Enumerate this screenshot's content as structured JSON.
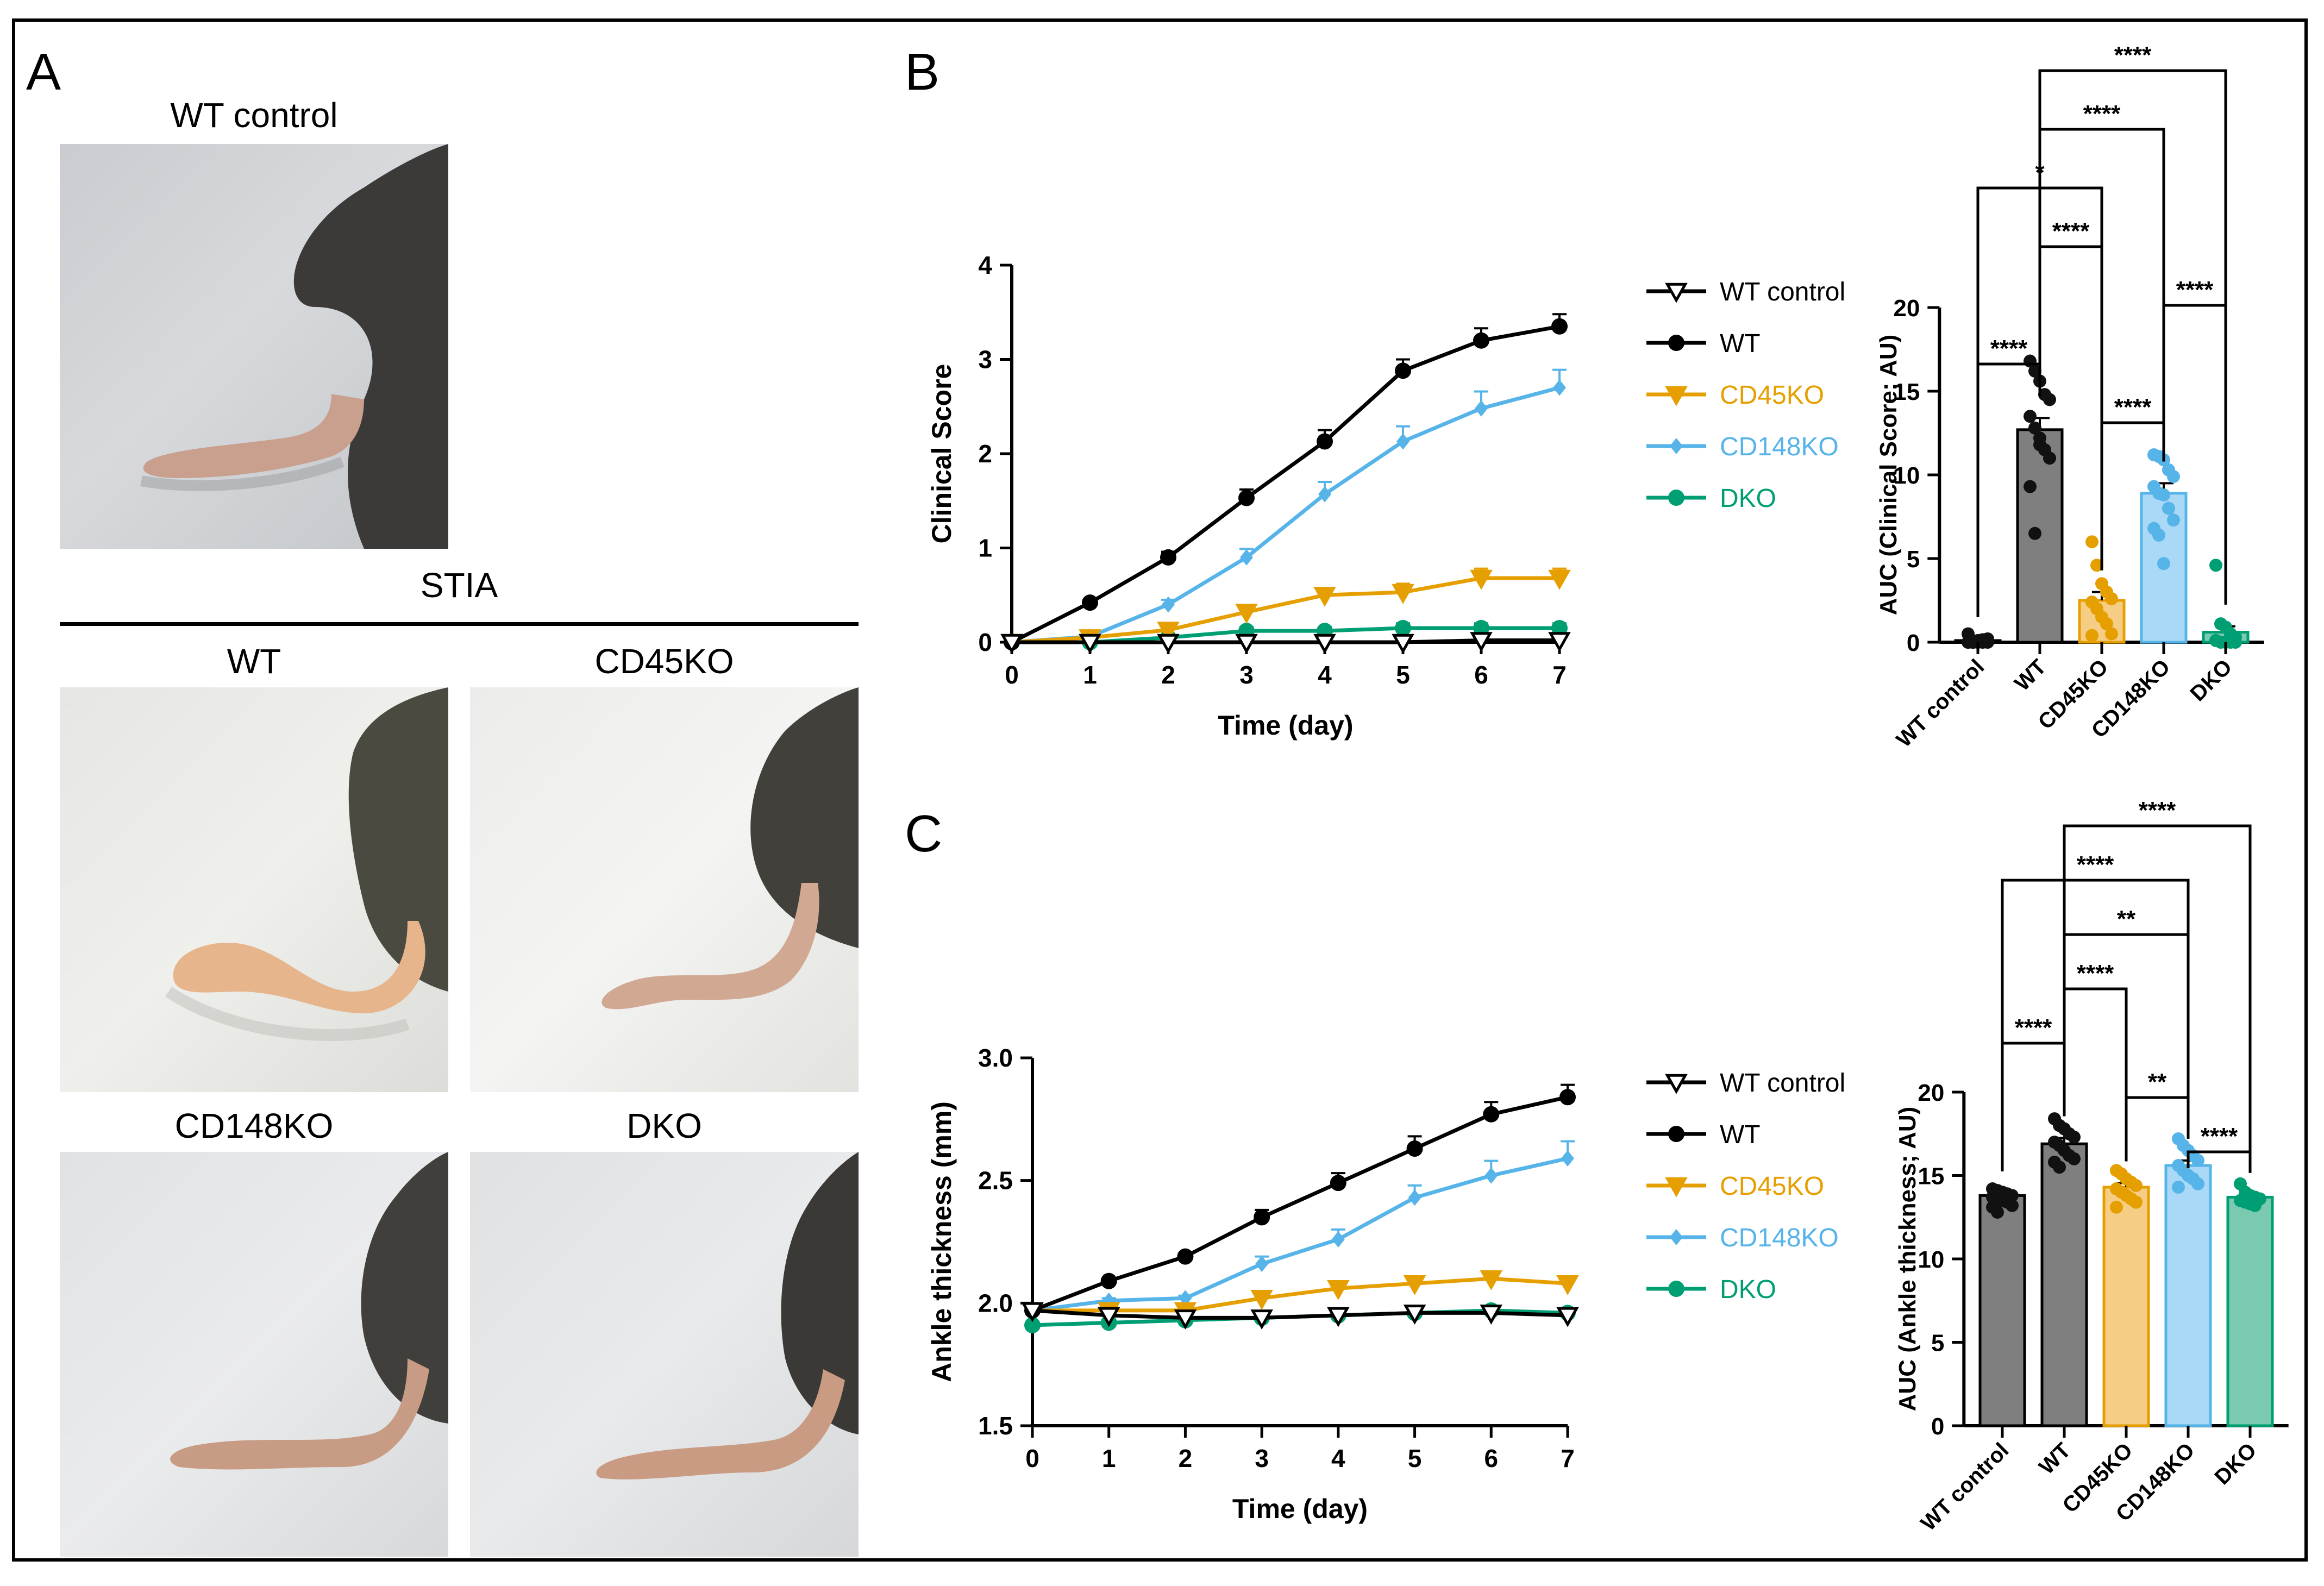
{
  "panels": {
    "a": "A",
    "b": "B",
    "c": "C"
  },
  "panel_a": {
    "control_title": "WT control",
    "group_title": "STIA",
    "photo_titles": [
      "WT",
      "CD45KO",
      "CD148KO",
      "DKO"
    ]
  },
  "colors": {
    "WT control": "#000000",
    "WT": "#000000",
    "CD45KO": "#E69F00",
    "CD148KO": "#56B4E9",
    "DKO": "#009E73",
    "bar_WT control": "#7f7f7f",
    "bar_WT": "#7f7f7f",
    "bar_CD45KO": "#f5cd85",
    "bar_CD148KO": "#a9d9f6",
    "bar_DKO": "#7cc9b2"
  },
  "chart_data": [
    {
      "id": "clinical-line",
      "type": "line",
      "title": "",
      "xlabel": "Time (day)",
      "ylabel": "Clinical Score",
      "x": [
        0,
        1,
        2,
        3,
        4,
        5,
        6,
        7
      ],
      "xticks": [
        "0",
        "1",
        "2",
        "3",
        "4",
        "5",
        "6",
        "7"
      ],
      "xlim": [
        0,
        7
      ],
      "ylim": [
        0,
        4
      ],
      "yticks": [
        "0",
        "1",
        "2",
        "3",
        "4"
      ],
      "series": [
        {
          "name": "WT control",
          "marker": "triangle-down-open",
          "values": [
            0,
            0,
            0,
            0,
            0,
            0,
            0.02,
            0.02
          ],
          "err": [
            0,
            0,
            0,
            0,
            0,
            0,
            0.03,
            0.03
          ]
        },
        {
          "name": "WT",
          "marker": "circle",
          "values": [
            0,
            0.42,
            0.9,
            1.53,
            2.13,
            2.88,
            3.2,
            3.35
          ],
          "err": [
            0,
            0.03,
            0.06,
            0.09,
            0.12,
            0.12,
            0.13,
            0.13
          ]
        },
        {
          "name": "CD45KO",
          "marker": "triangle-down",
          "values": [
            0,
            0.05,
            0.13,
            0.32,
            0.5,
            0.53,
            0.68,
            0.68
          ],
          "err": [
            0,
            0.02,
            0.04,
            0.06,
            0.07,
            0.09,
            0.1,
            0.1
          ]
        },
        {
          "name": "CD148KO",
          "marker": "diamond",
          "values": [
            0,
            0.06,
            0.4,
            0.9,
            1.57,
            2.13,
            2.48,
            2.7
          ],
          "err": [
            0,
            0.02,
            0.05,
            0.09,
            0.13,
            0.16,
            0.18,
            0.19
          ]
        },
        {
          "name": "DKO",
          "marker": "circle",
          "values": [
            0,
            0,
            0.05,
            0.12,
            0.12,
            0.15,
            0.15,
            0.15
          ],
          "err": [
            0,
            0,
            0.03,
            0.04,
            0.04,
            0.05,
            0.05,
            0.05
          ]
        }
      ],
      "legend": [
        "WT control",
        "WT",
        "CD45KO",
        "CD148KO",
        "DKO"
      ]
    },
    {
      "id": "clinical-bar",
      "type": "bar",
      "title": "",
      "xlabel": "",
      "ylabel": "AUC (Clinical Score; AU)",
      "categories": [
        "WT control",
        "WT",
        "CD45KO",
        "CD148KO",
        "DKO"
      ],
      "values": [
        0.1,
        12.7,
        2.5,
        8.9,
        0.6
      ],
      "err": [
        0.1,
        0.7,
        0.5,
        0.6,
        0.35
      ],
      "ylim": [
        0,
        20
      ],
      "yticks": [
        "0",
        "5",
        "10",
        "15",
        "20"
      ],
      "points": [
        [
          0,
          0,
          0,
          0,
          0,
          0,
          0,
          0.1,
          0.15,
          0.2,
          0.5,
          0,
          0
        ],
        [
          16.8,
          16.2,
          15.6,
          14.8,
          14.5,
          13.5,
          12.8,
          12.2,
          11.5,
          11,
          9.3,
          6.5,
          11.8
        ],
        [
          6,
          4.6,
          3.5,
          3,
          2.6,
          2.4,
          2,
          1.5,
          1.1,
          0.5,
          0.4
        ],
        [
          11.2,
          11.1,
          10.9,
          10.3,
          9.9,
          9.3,
          8.9,
          8.8,
          8,
          7.3,
          6.8,
          6.4,
          4.7
        ],
        [
          4.6,
          1.1,
          0.9,
          0.5,
          0.3,
          0.1,
          0,
          0,
          0,
          0
        ]
      ],
      "significance": [
        {
          "from": 1,
          "to": 4,
          "label": "****"
        },
        {
          "from": 1,
          "to": 3,
          "label": "****"
        },
        {
          "from": 0,
          "to": 2,
          "label": "*"
        },
        {
          "from": 1,
          "to": 2,
          "label": "****"
        },
        {
          "from": 3,
          "to": 4,
          "label": "****"
        },
        {
          "from": 0,
          "to": 1,
          "label": "****"
        },
        {
          "from": 2,
          "to": 3,
          "label": "****"
        }
      ]
    },
    {
      "id": "ankle-line",
      "type": "line",
      "title": "",
      "xlabel": "Time (day)",
      "ylabel": "Ankle thickness (mm)",
      "x": [
        0,
        1,
        2,
        3,
        4,
        5,
        6,
        7
      ],
      "xticks": [
        "0",
        "1",
        "2",
        "3",
        "4",
        "5",
        "6",
        "7"
      ],
      "xlim": [
        0,
        7
      ],
      "ylim": [
        1.5,
        3.0
      ],
      "yticks": [
        "1.5",
        "2.0",
        "2.5",
        "3.0"
      ],
      "series": [
        {
          "name": "WT control",
          "marker": "triangle-down-open",
          "values": [
            1.97,
            1.95,
            1.94,
            1.94,
            1.95,
            1.96,
            1.96,
            1.95
          ],
          "err": [
            0.01,
            0.01,
            0.01,
            0.01,
            0.01,
            0.01,
            0.01,
            0.01
          ]
        },
        {
          "name": "WT",
          "marker": "circle",
          "values": [
            1.97,
            2.09,
            2.19,
            2.35,
            2.49,
            2.63,
            2.77,
            2.84
          ],
          "err": [
            0.01,
            0.01,
            0.01,
            0.03,
            0.04,
            0.05,
            0.05,
            0.05
          ]
        },
        {
          "name": "CD45KO",
          "marker": "triangle-down",
          "values": [
            1.97,
            1.97,
            1.97,
            2.02,
            2.06,
            2.08,
            2.1,
            2.08
          ],
          "err": [
            0.01,
            0.01,
            0.01,
            0.01,
            0.01,
            0.01,
            0.02,
            0.02
          ]
        },
        {
          "name": "CD148KO",
          "marker": "diamond",
          "values": [
            1.97,
            2.01,
            2.02,
            2.16,
            2.26,
            2.43,
            2.52,
            2.59
          ],
          "err": [
            0.01,
            0.01,
            0.01,
            0.03,
            0.04,
            0.05,
            0.06,
            0.07
          ]
        },
        {
          "name": "DKO",
          "marker": "circle",
          "values": [
            1.91,
            1.92,
            1.93,
            1.94,
            1.95,
            1.96,
            1.97,
            1.96
          ],
          "err": [
            0.01,
            0.01,
            0.01,
            0.01,
            0.01,
            0.01,
            0.01,
            0.01
          ]
        }
      ],
      "legend": [
        "WT control",
        "WT",
        "CD45KO",
        "CD148KO",
        "DKO"
      ]
    },
    {
      "id": "ankle-bar",
      "type": "bar",
      "title": "",
      "xlabel": "",
      "ylabel": "AUC (Ankle thickness; AU)",
      "categories": [
        "WT control",
        "WT",
        "CD45KO",
        "CD148KO",
        "DKO"
      ],
      "values": [
        13.8,
        16.9,
        14.3,
        15.6,
        13.7
      ],
      "err": [
        0.15,
        0.35,
        0.25,
        0.3,
        0.15
      ],
      "ylim": [
        0,
        20
      ],
      "yticks": [
        "0",
        "5",
        "10",
        "15",
        "20"
      ],
      "points": [
        [
          14.2,
          14.1,
          14,
          13.9,
          13.8,
          13.7,
          13.6,
          13.5,
          13.4,
          13.2,
          13.1,
          12.8
        ],
        [
          18.4,
          18,
          17.8,
          17.5,
          17.3,
          17,
          16.8,
          16.5,
          16.2,
          16,
          15.8,
          15.5
        ],
        [
          15.3,
          15.1,
          14.8,
          14.6,
          14.4,
          14.2,
          14,
          13.8,
          13.6,
          13.4,
          13.1
        ],
        [
          17.2,
          16.8,
          16.5,
          16.2,
          15.9,
          15.6,
          15.3,
          15,
          14.8,
          14.5,
          14.3
        ],
        [
          14.5,
          14,
          13.8,
          13.7,
          13.6,
          13.5,
          13.4,
          13.3,
          13.2
        ]
      ],
      "significance": [
        {
          "from": 1,
          "to": 4,
          "label": "****"
        },
        {
          "from": 0,
          "to": 3,
          "label": "****"
        },
        {
          "from": 1,
          "to": 3,
          "label": "**"
        },
        {
          "from": 1,
          "to": 2,
          "label": "****"
        },
        {
          "from": 0,
          "to": 1,
          "label": "****"
        },
        {
          "from": 2,
          "to": 3,
          "label": "**"
        },
        {
          "from": 3,
          "to": 4,
          "label": "****"
        }
      ]
    }
  ]
}
